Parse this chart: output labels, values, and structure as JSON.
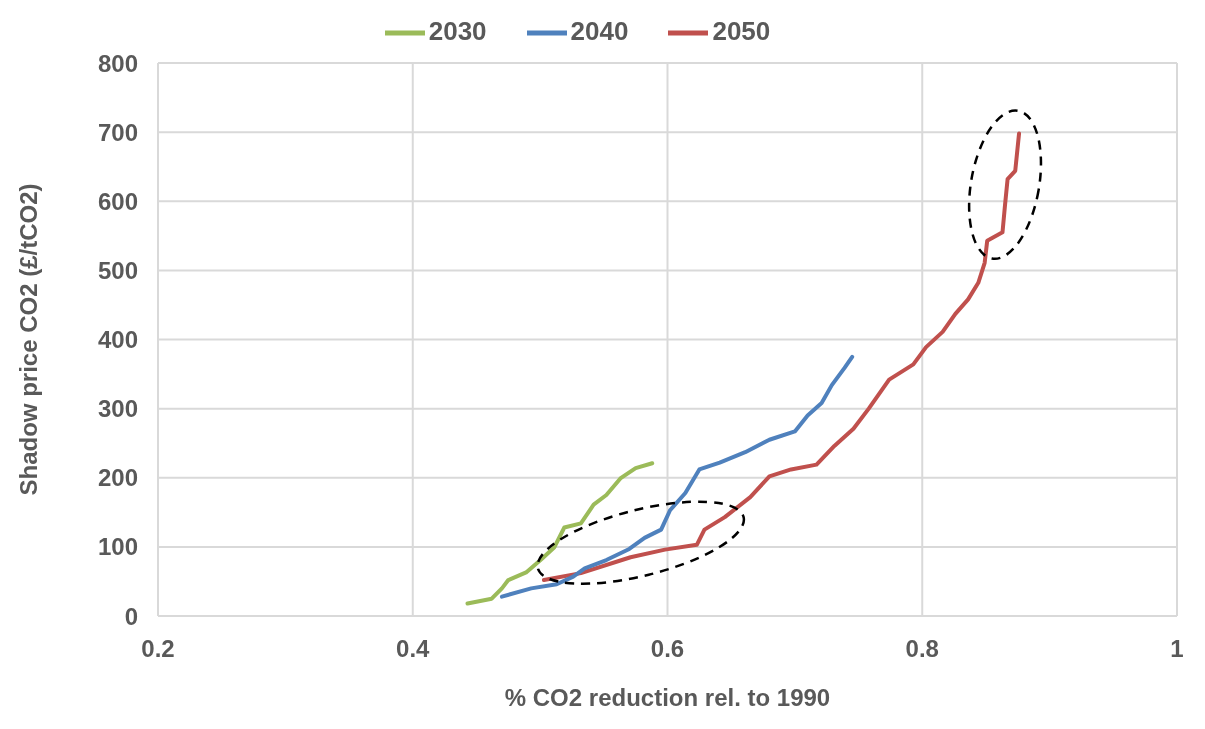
{
  "chart_data": {
    "type": "line",
    "xlabel": "% CO2 reduction rel. to 1990",
    "ylabel": "Shadow price CO2 (£/tCO2)",
    "xlim": [
      0.2,
      1
    ],
    "xticks": [
      0.2,
      0.4,
      0.6,
      0.8,
      1
    ],
    "ylim": [
      0,
      800
    ],
    "yticks": [
      0,
      100,
      200,
      300,
      400,
      500,
      600,
      700,
      800
    ],
    "grid": true,
    "legend": "top",
    "marker": "none",
    "line_style": "solid",
    "series": [
      {
        "name": "2050",
        "color": "#c0504d",
        "x": [
          0.503,
          0.532,
          0.571,
          0.598,
          0.623,
          0.629,
          0.645,
          0.665,
          0.68,
          0.697,
          0.717,
          0.731,
          0.746,
          0.758,
          0.774,
          0.793,
          0.803,
          0.816,
          0.826,
          0.836,
          0.844,
          0.849,
          0.851,
          0.863,
          0.865,
          0.867,
          0.873,
          0.876
        ],
        "values": [
          52,
          62,
          85,
          96,
          103,
          125,
          143,
          172,
          202,
          212,
          219,
          246,
          271,
          300,
          342,
          364,
          389,
          411,
          437,
          458,
          482,
          511,
          543,
          555,
          595,
          632,
          644,
          698
        ]
      },
      {
        "name": "2040",
        "color": "#4f81bd",
        "x": [
          0.47,
          0.493,
          0.513,
          0.526,
          0.535,
          0.552,
          0.57,
          0.582,
          0.595,
          0.602,
          0.614,
          0.625,
          0.641,
          0.661,
          0.68,
          0.7,
          0.71,
          0.721,
          0.729,
          0.739,
          0.745
        ],
        "values": [
          28,
          40,
          46,
          57,
          69,
          81,
          97,
          113,
          125,
          153,
          178,
          212,
          222,
          237,
          255,
          267,
          290,
          308,
          334,
          359,
          375
        ]
      },
      {
        "name": "2030",
        "color": "#9bbb59",
        "x": [
          0.443,
          0.462,
          0.47,
          0.475,
          0.489,
          0.501,
          0.511,
          0.519,
          0.532,
          0.542,
          0.552,
          0.563,
          0.575,
          0.588
        ],
        "values": [
          18,
          25,
          40,
          52,
          63,
          82,
          99,
          128,
          134,
          161,
          175,
          199,
          214,
          221
        ]
      }
    ]
  }
}
